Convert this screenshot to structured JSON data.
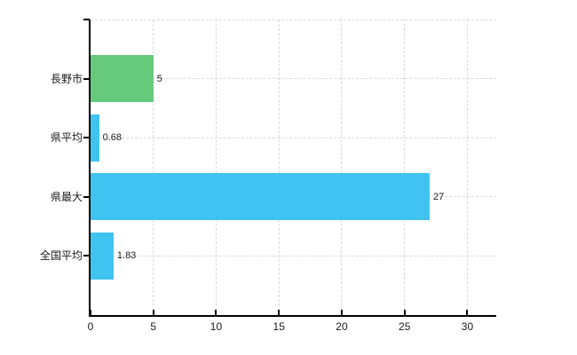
{
  "chart_data": {
    "type": "bar",
    "orientation": "horizontal",
    "title": "",
    "xlabel": "",
    "ylabel": "",
    "categories": [
      "長野市",
      "県平均",
      "県最大",
      "全国平均"
    ],
    "values": [
      5,
      0.68,
      27,
      1.83
    ],
    "value_labels": [
      "5",
      "0.68",
      "27",
      "1.83"
    ],
    "bar_colors": [
      "#66c97c",
      "#41c3f2",
      "#41c3f2",
      "#41c3f2"
    ],
    "x_ticks": [
      0,
      5,
      10,
      15,
      20,
      25,
      30
    ],
    "x_tick_labels": [
      "0",
      "5",
      "10",
      "15",
      "20",
      "25",
      "30"
    ],
    "xlim": [
      0,
      32.3
    ],
    "grid": true,
    "legend": false
  },
  "colors": {
    "background": "#ffffff",
    "axis": "#000000",
    "grid": "#d9d9d9",
    "text": "#1a1a1a",
    "bar_green": "#66c97c",
    "bar_blue": "#41c3f2"
  }
}
